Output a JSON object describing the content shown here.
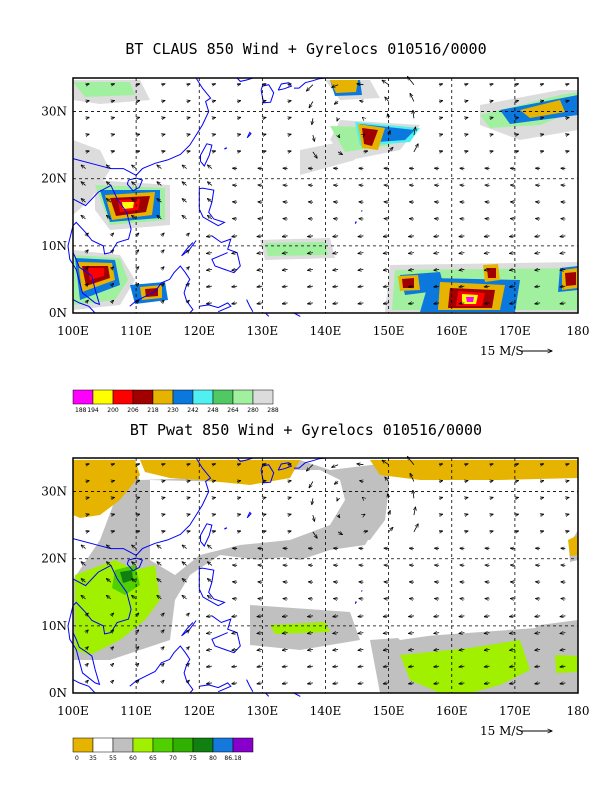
{
  "top": {
    "title": "BT CLAUS 850 Wind + Gyrelocs 010516/0000",
    "lat_labels": [
      "30N",
      "20N",
      "10N",
      "0N"
    ],
    "lon_labels": [
      "100E",
      "110E",
      "120E",
      "130E",
      "140E",
      "150E",
      "160E",
      "170E",
      "180"
    ],
    "scale_label": "15 M/S",
    "colorbar": {
      "colors": [
        "#ff00ff",
        "#ffff00",
        "#ff0000",
        "#a00000",
        "#e6b400",
        "#0a78dc",
        "#50f0f0",
        "#50c864",
        "#a0f0a0",
        "#dcdcdc"
      ],
      "labels": [
        "188",
        "194",
        "200",
        "206",
        "218",
        "230",
        "242",
        "248",
        "264",
        "280",
        "288"
      ]
    }
  },
  "bottom": {
    "title": "BT Pwat 850 Wind + Gyrelocs 010516/0000",
    "lat_labels": [
      "30N",
      "20N",
      "10N",
      "0N"
    ],
    "lon_labels": [
      "100E",
      "110E",
      "120E",
      "130E",
      "140E",
      "150E",
      "160E",
      "170E",
      "180"
    ],
    "scale_label": "15 M/S",
    "colorbar": {
      "colors": [
        "#e6b400",
        "#ffffff",
        "#c0c0c0",
        "#a0f000",
        "#50d000",
        "#30b000",
        "#108010",
        "#1478dc",
        "#8800cc"
      ],
      "labels": [
        "0",
        "35",
        "55",
        "60",
        "65",
        "70",
        "75",
        "80",
        "86.18"
      ]
    }
  },
  "map": {
    "lon_range": [
      100,
      180
    ],
    "lat_range": [
      0,
      35
    ],
    "colors": {
      "coast": "#0000ff",
      "grid": "#000000"
    }
  }
}
